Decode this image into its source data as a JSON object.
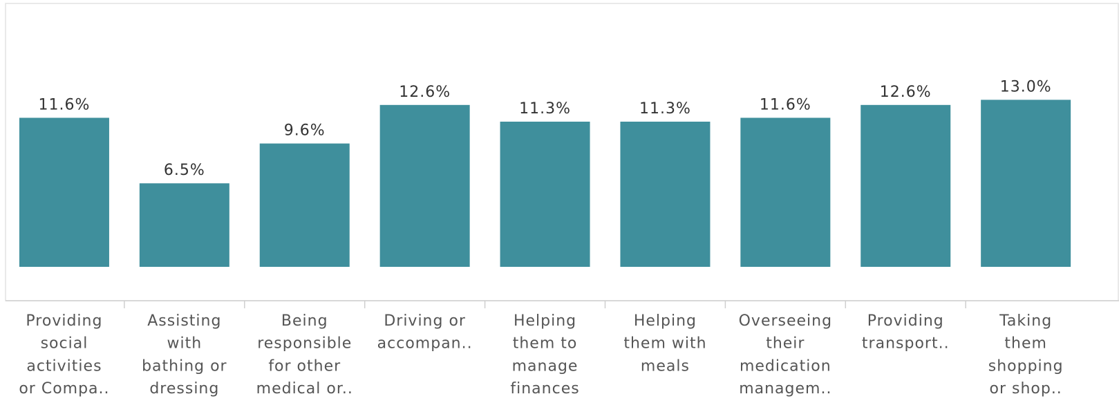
{
  "chart_data": {
    "type": "bar",
    "categories": [
      [
        "Providing",
        "social",
        "activities",
        "or Compa.."
      ],
      [
        "Assisting",
        "with",
        "bathing or",
        "dressing"
      ],
      [
        "Being",
        "responsible",
        "for other",
        "medical or.."
      ],
      [
        "Driving or",
        "accompan.."
      ],
      [
        "Helping",
        "them to",
        "manage",
        "finances"
      ],
      [
        "Helping",
        "them with",
        "meals"
      ],
      [
        "Overseeing",
        "their",
        "medication",
        "managem.."
      ],
      [
        "Providing",
        "transport.."
      ],
      [
        "Taking",
        "them",
        "shopping",
        "or shop.."
      ]
    ],
    "values": [
      11.6,
      6.5,
      9.6,
      12.6,
      11.3,
      11.3,
      11.6,
      12.6,
      13.0
    ],
    "value_labels": [
      "11.6%",
      "6.5%",
      "9.6%",
      "12.6%",
      "11.3%",
      "11.3%",
      "11.6%",
      "12.6%",
      "13.0%"
    ],
    "color": "#3f8f9c",
    "ylim": [
      0,
      20.5
    ]
  }
}
